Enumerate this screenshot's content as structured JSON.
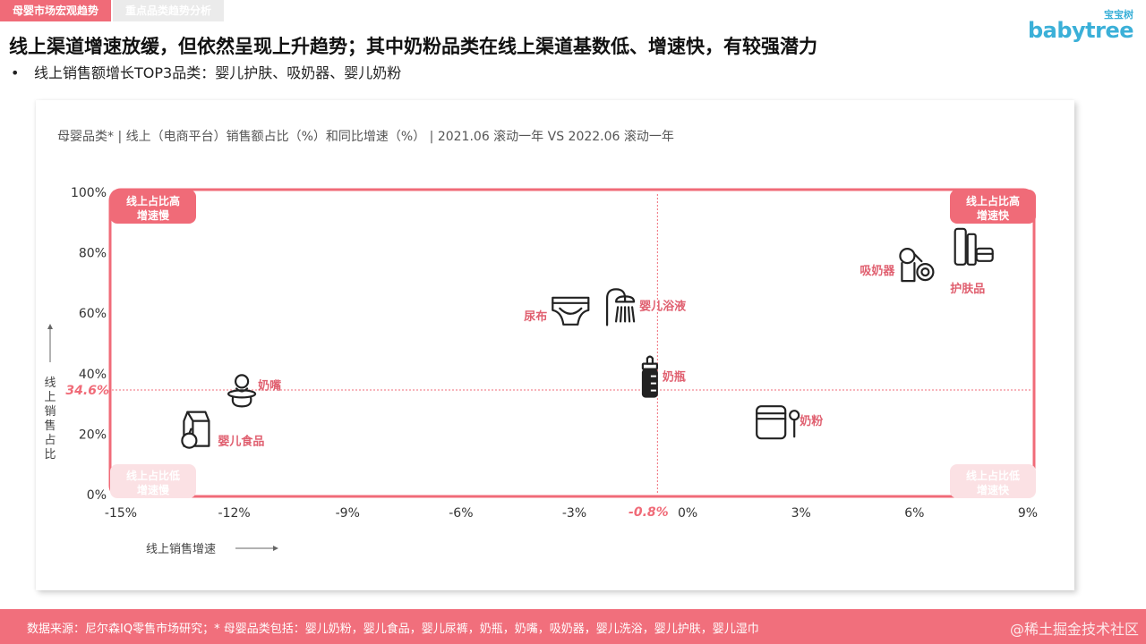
{
  "tabs": [
    "母婴市场宏观趋势",
    "重点品类趋势分析"
  ],
  "logo": {
    "cn": "宝宝树",
    "en": "babytree"
  },
  "headline": "线上渠道增速放缓，但依然呈现上升趋势；其中奶粉品类在线上渠道基数低、增速快，有较强潜力",
  "bullet": {
    "marker": "•",
    "text": "线上销售额增长TOP3品类：婴儿护肤、吸奶器、婴儿奶粉"
  },
  "chart_title": "母婴品类* | 线上（电商平台）销售额占比（%）和同比增速（%） | 2021.06 滚动一年 VS 2022.06 滚动一年",
  "footer": {
    "source": "数据来源：尼尔森IQ零售市场研究；* 母婴品类包括：婴儿奶粉，婴儿食品，婴儿尿裤，奶瓶，奶嘴，吸奶器，婴儿洗浴，婴儿护肤，婴儿湿巾",
    "watermark": "@稀土掘金技术社区"
  },
  "colors": {
    "accent": "#f06b78",
    "pink_light": "#fbe1e4",
    "dark_label": "#e06070"
  },
  "chart_data": {
    "type": "scatter",
    "x_ticks": [
      "-15%",
      "-12%",
      "-9%",
      "-6%",
      "-3%",
      "0%",
      "3%",
      "6%",
      "9%"
    ],
    "y_ticks": [
      "0%",
      "20%",
      "40%",
      "60%",
      "80%",
      "100%"
    ],
    "xlim": [
      -15,
      9
    ],
    "ylim": [
      0,
      100
    ],
    "xlabel": "线上销售增速",
    "ylabel": "线上销售占比",
    "ref_x": {
      "value": -0.8,
      "label": "-0.8%"
    },
    "ref_y": {
      "value": 34.6,
      "label": "34.6%"
    },
    "quadrants": [
      {
        "pos": "top-left",
        "line1": "线上占比高",
        "line2": "增速慢"
      },
      {
        "pos": "top-right",
        "line1": "线上占比高",
        "line2": "增速快"
      },
      {
        "pos": "bottom-left",
        "line1": "线上占比低",
        "line2": "增速慢"
      },
      {
        "pos": "bottom-right",
        "line1": "线上占比低",
        "line2": "增速快"
      }
    ],
    "points": [
      {
        "name": "奶嘴",
        "x": -11.8,
        "y": 34.5,
        "icon": "pacifier-icon"
      },
      {
        "name": "婴儿食品",
        "x": -13.0,
        "y": 22.0,
        "icon": "baby-food-icon"
      },
      {
        "name": "尿布",
        "x": -3.1,
        "y": 61.0,
        "icon": "diaper-icon"
      },
      {
        "name": "婴儿浴液",
        "x": -1.8,
        "y": 62.0,
        "icon": "shower-icon"
      },
      {
        "name": "奶瓶",
        "x": -1.0,
        "y": 38.0,
        "icon": "baby-bottle-icon"
      },
      {
        "name": "奶粉",
        "x": 2.3,
        "y": 24.5,
        "icon": "milk-powder-icon"
      },
      {
        "name": "吸奶器",
        "x": 6.0,
        "y": 76.0,
        "icon": "breast-pump-icon"
      },
      {
        "name": "护肤品",
        "x": 7.5,
        "y": 82.0,
        "icon": "skincare-icon"
      }
    ]
  }
}
